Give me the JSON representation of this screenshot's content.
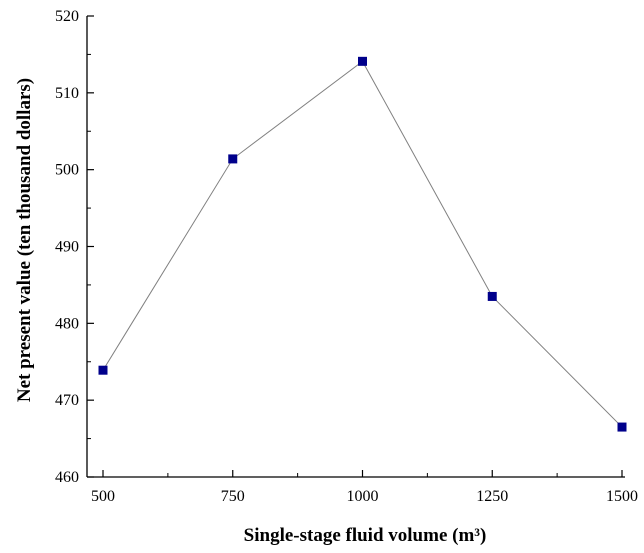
{
  "chart_data": {
    "type": "line",
    "title": "",
    "xlabel": "Single-stage fluid volume (m³)",
    "ylabel": "Net present value (ten thousand dollars)",
    "x": [
      500,
      750,
      1000,
      1250,
      1500
    ],
    "series": [
      {
        "values": [
          473.9,
          501.4,
          514.1,
          483.5,
          466.5
        ],
        "color": "#00008b"
      }
    ],
    "xlim": [
      500,
      1500
    ],
    "ylim": [
      460,
      520
    ],
    "xticks": [
      500,
      750,
      1000,
      1250,
      1500
    ],
    "yticks": [
      460,
      470,
      480,
      490,
      500,
      510,
      520
    ],
    "grid": false,
    "legend": "none",
    "marker": "square",
    "line_color": "#808080"
  }
}
